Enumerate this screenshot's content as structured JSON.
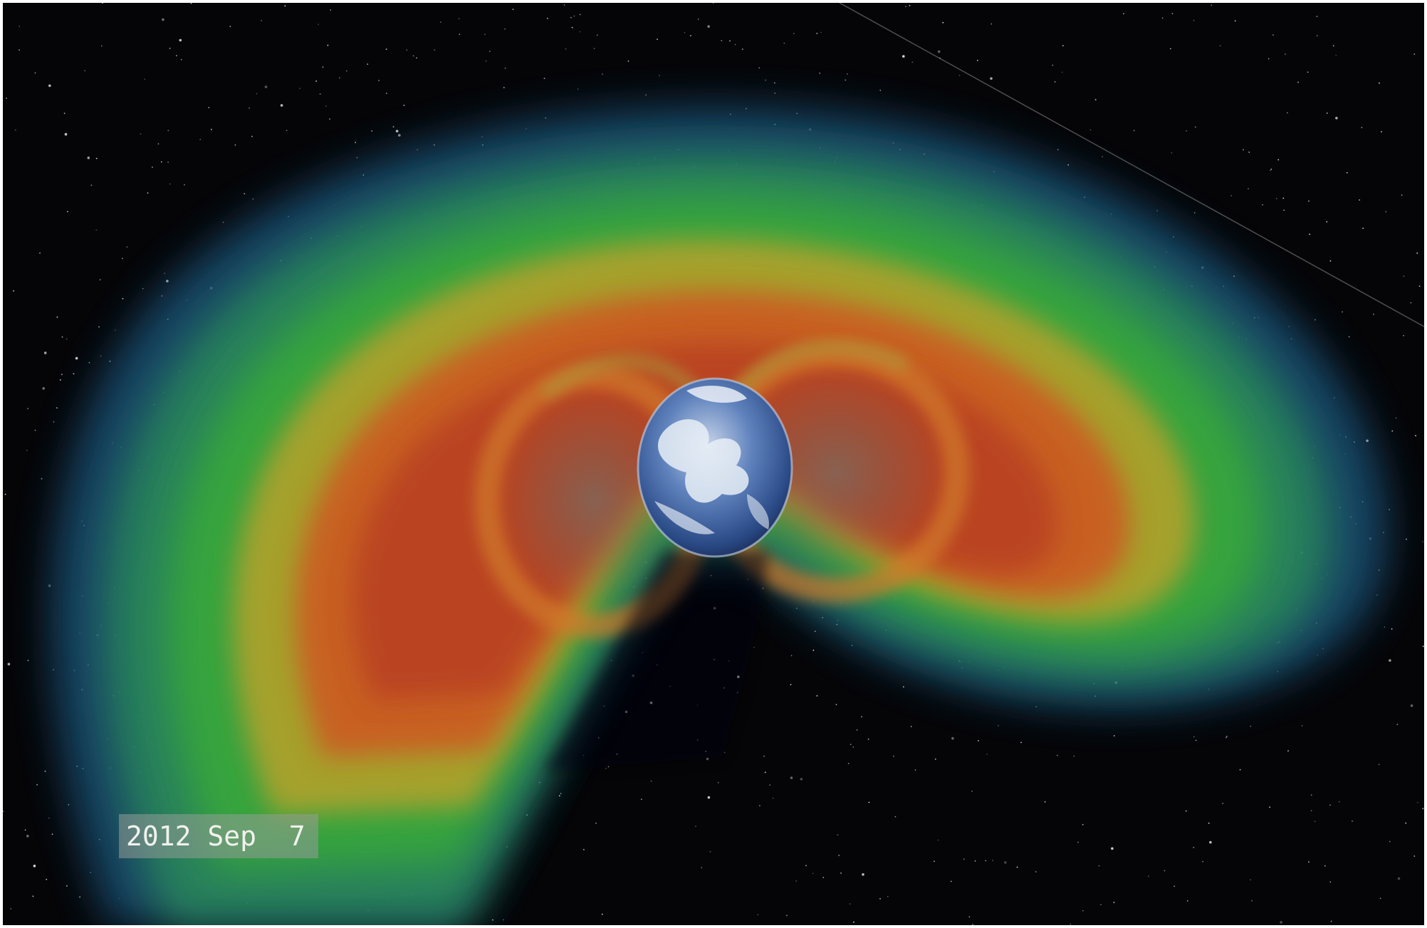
{
  "image": {
    "subject": "earth-radiation-belts",
    "colors": {
      "space": "#050508",
      "outer_blue": "#1d5a82",
      "green": "#34a83c",
      "yellow": "#b9a12c",
      "orange": "#cc5a22",
      "red": "#b63a20",
      "inner_gray": "#6a5e55",
      "earth_ocean": "#2f5a9a",
      "earth_cloud": "#e8eef6"
    }
  },
  "timestamp": {
    "label": "2012 Sep  7"
  }
}
